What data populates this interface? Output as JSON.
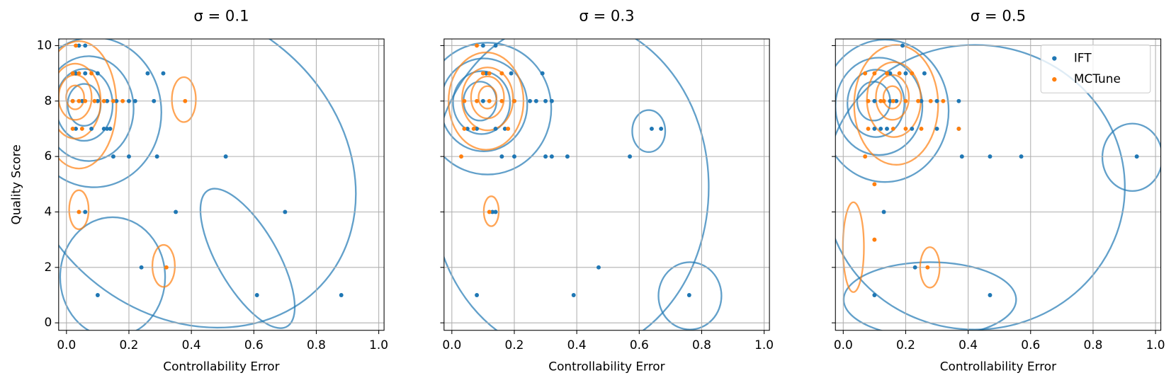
{
  "chart_data": [
    {
      "type": "scatter",
      "title": "σ = 0.1",
      "xlabel": "Controllability Error",
      "ylabel": "Quality Score",
      "xlim": [
        -0.025,
        1.017
      ],
      "ylim": [
        -0.27,
        10.24
      ],
      "xticks": [
        {
          "value": 0,
          "label": "0.0"
        },
        0.2,
        0.4,
        0.6,
        0.8,
        {
          "value": 1,
          "label": "1.0"
        }
      ],
      "yticks": [
        0,
        2,
        4,
        6,
        8,
        10
      ],
      "grid": true,
      "series": [
        {
          "color": "#1f77b4",
          "x": [
            0.02,
            0.05,
            0.1,
            0.13,
            0.16,
            0.2,
            0.22,
            0.28,
            0.03,
            0.06,
            0.1,
            0.26,
            0.31,
            0.04,
            0.06,
            0.03,
            0.08,
            0.12,
            0.14,
            0.13,
            0.15,
            0.2,
            0.29,
            0.51,
            0.06,
            0.35,
            0.7,
            0.24,
            0.1,
            0.61,
            0.88
          ],
          "y": [
            8,
            8,
            8,
            8,
            8,
            8,
            8,
            8,
            9,
            9,
            9,
            9,
            9,
            10,
            10,
            7,
            7,
            7,
            7,
            7,
            6,
            6,
            6,
            6,
            4,
            4,
            4,
            2,
            1,
            1,
            1
          ]
        },
        {
          "color": "#ff7f0e",
          "x": [
            0.02,
            0.04,
            0.06,
            0.09,
            0.12,
            0.15,
            0.18,
            0.02,
            0.04,
            0.08,
            0.03,
            0.02,
            0.05,
            0.38,
            0.04,
            0.32
          ],
          "y": [
            8,
            8,
            8,
            8,
            8,
            8,
            8,
            9,
            9,
            9,
            10,
            7,
            7,
            8,
            4,
            2
          ]
        }
      ]
    },
    {
      "type": "scatter",
      "title": "σ = 0.3",
      "xlabel": "Controllability Error",
      "xlim": [
        -0.025,
        1.017
      ],
      "ylim": [
        -0.27,
        10.24
      ],
      "xticks": [
        {
          "value": 0,
          "label": "0.0"
        },
        0.2,
        0.4,
        0.6,
        0.8,
        {
          "value": 1,
          "label": "1.0"
        }
      ],
      "yticks": [
        0,
        2,
        4,
        6,
        8,
        10
      ],
      "grid": true,
      "series": [
        {
          "color": "#1f77b4",
          "x": [
            0.1,
            0.14,
            0.11,
            0.19,
            0.29,
            0.1,
            0.2,
            0.25,
            0.27,
            0.3,
            0.32,
            0.05,
            0.08,
            0.14,
            0.17,
            0.16,
            0.2,
            0.3,
            0.32,
            0.37,
            0.57,
            0.64,
            0.67,
            0.13,
            0.14,
            0.47,
            0.08,
            0.39,
            0.76
          ],
          "y": [
            10,
            10,
            9,
            9,
            9,
            8,
            8,
            8,
            8,
            8,
            8,
            7,
            7,
            7,
            7,
            6,
            6,
            6,
            6,
            6,
            6,
            7,
            7,
            4,
            4,
            2,
            1,
            1,
            1
          ]
        },
        {
          "color": "#ff7f0e",
          "x": [
            0.08,
            0.1,
            0.12,
            0.16,
            0.04,
            0.08,
            0.12,
            0.16,
            0.2,
            0.04,
            0.07,
            0.18,
            0.03,
            0.12
          ],
          "y": [
            10,
            9,
            9,
            9,
            8,
            8,
            8,
            8,
            8,
            7,
            7,
            7,
            6,
            4
          ]
        }
      ]
    },
    {
      "type": "scatter",
      "title": "σ = 0.5",
      "xlabel": "Controllability Error",
      "xlim": [
        -0.025,
        1.017
      ],
      "ylim": [
        -0.27,
        10.24
      ],
      "xticks": [
        {
          "value": 0,
          "label": "0.0"
        },
        0.2,
        0.4,
        0.6,
        0.8,
        {
          "value": 1,
          "label": "1.0"
        }
      ],
      "yticks": [
        0,
        2,
        4,
        6,
        8,
        10
      ],
      "grid": true,
      "legend": "upper right",
      "series": [
        {
          "name": "IFT",
          "color": "#1f77b4",
          "x": [
            0.19,
            0.15,
            0.2,
            0.26,
            0.1,
            0.15,
            0.17,
            0.25,
            0.3,
            0.37,
            0.1,
            0.12,
            0.14,
            0.22,
            0.3,
            0.37,
            0.38,
            0.47,
            0.57,
            0.94,
            0.13,
            0.23,
            0.1,
            0.47
          ],
          "y": [
            10,
            9,
            9,
            9,
            8,
            8,
            8,
            8,
            8,
            8,
            7,
            7,
            7,
            7,
            7,
            7,
            6,
            6,
            6,
            6,
            4,
            2,
            1,
            1
          ]
        },
        {
          "name": "MCTune",
          "color": "#ff7f0e",
          "x": [
            0.07,
            0.1,
            0.14,
            0.18,
            0.22,
            0.08,
            0.12,
            0.13,
            0.16,
            0.2,
            0.24,
            0.28,
            0.32,
            0.08,
            0.16,
            0.2,
            0.25,
            0.37,
            0.07,
            0.1,
            0.1,
            0.27
          ],
          "y": [
            9,
            9,
            9,
            9,
            9,
            8,
            8,
            8,
            8,
            8,
            8,
            8,
            8,
            7,
            7,
            7,
            7,
            7,
            6,
            5,
            3,
            2
          ]
        }
      ]
    }
  ]
}
